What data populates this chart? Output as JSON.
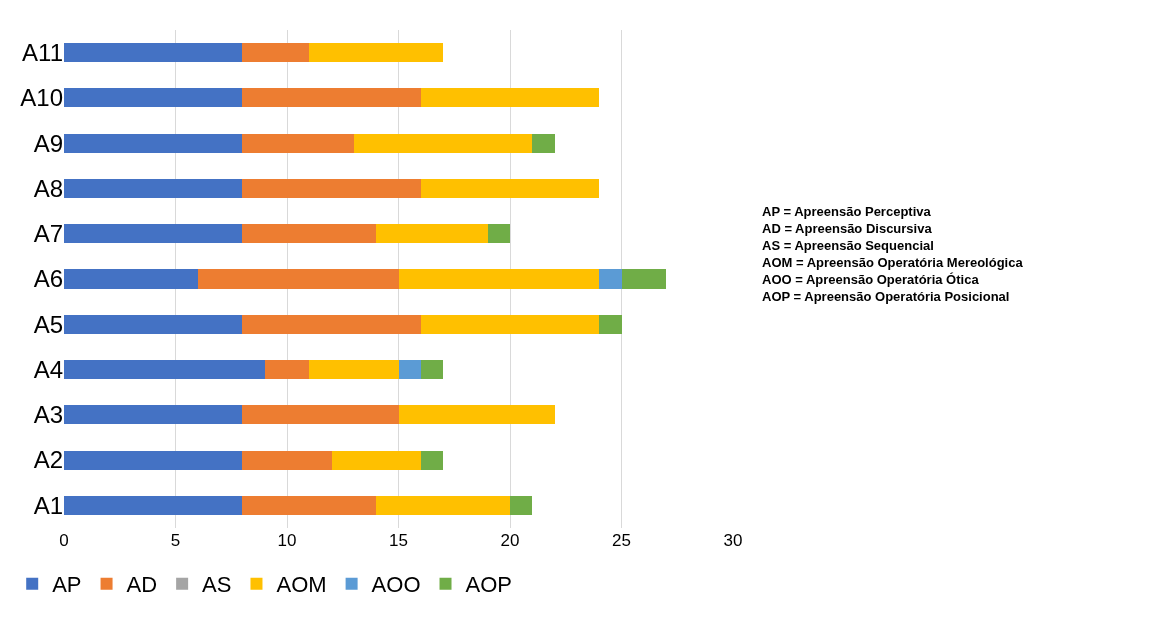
{
  "chart_data": {
    "type": "bar",
    "orientation": "horizontal",
    "stacked": true,
    "categories": [
      "A11",
      "A10",
      "A9",
      "A8",
      "A7",
      "A6",
      "A5",
      "A4",
      "A3",
      "A2",
      "A1"
    ],
    "series": [
      {
        "name": "AP",
        "color": "#4472c4",
        "values": [
          8,
          8,
          8,
          8,
          8,
          6,
          8,
          9,
          8,
          8,
          8
        ]
      },
      {
        "name": "AD",
        "color": "#ed7d31",
        "values": [
          3,
          8,
          5,
          8,
          6,
          9,
          8,
          2,
          7,
          4,
          6
        ]
      },
      {
        "name": "AS",
        "color": "#a5a5a5",
        "values": [
          0,
          0,
          0,
          0,
          0,
          0,
          0,
          0,
          0,
          0,
          0
        ]
      },
      {
        "name": "AOM",
        "color": "#ffc000",
        "values": [
          6,
          8,
          8,
          8,
          5,
          9,
          8,
          4,
          7,
          4,
          6
        ]
      },
      {
        "name": "AOO",
        "color": "#5b9bd5",
        "values": [
          0,
          0,
          0,
          0,
          0,
          1,
          0,
          1,
          0,
          0,
          0
        ]
      },
      {
        "name": "AOP",
        "color": "#70ad47",
        "values": [
          0,
          0,
          1,
          0,
          1,
          2,
          1,
          1,
          0,
          1,
          1
        ]
      }
    ],
    "xlim": [
      0,
      30
    ],
    "xticks": [
      0,
      5,
      10,
      15,
      20,
      25,
      30
    ],
    "grid": "x",
    "legend": "bottom",
    "annotations": [
      "AP = Apreensão Perceptiva\nAD = Apreensão Discursiva\nAS = Apreensão Sequencial\nAOM = Apreensão Operatória Mereológica\nAOO = Apreensão Operatória Ótica\nAOP = Apreensão Operatória Posicional"
    ]
  }
}
